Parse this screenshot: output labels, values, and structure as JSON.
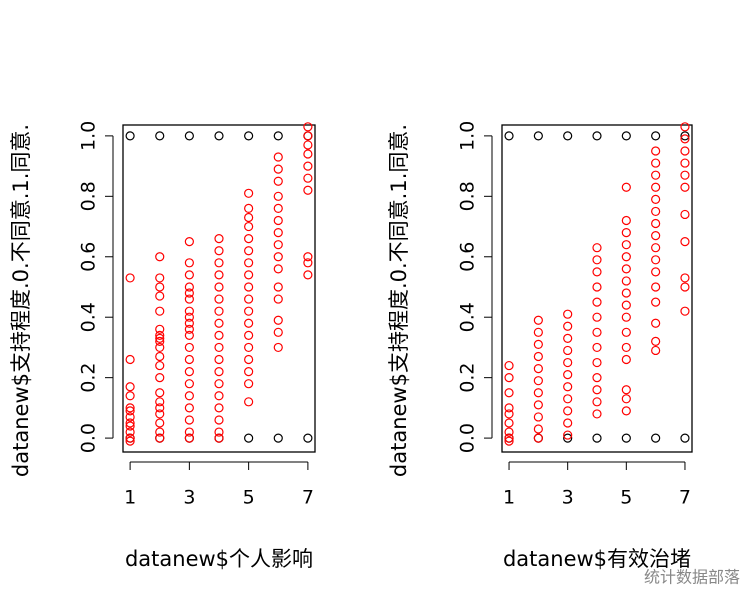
{
  "chart_data": [
    {
      "type": "scatter",
      "xlabel": "datanew$个人影响",
      "ylabel": "datanew$支持程度.0.不同意.1.同意.",
      "xlim": [
        0.76,
        7.24
      ],
      "ylim": [
        -0.046,
        1.036
      ],
      "xticks": [
        1,
        3,
        5,
        7
      ],
      "yticks": [
        {
          "value": 0,
          "label": "0.0"
        },
        0.2,
        0.4,
        0.6,
        0.8,
        {
          "value": 1,
          "label": "1.0"
        }
      ],
      "series": [
        {
          "color": "#000000",
          "x": [
            1,
            2,
            3,
            4,
            5,
            6,
            7,
            1,
            2,
            3,
            4,
            5,
            6,
            7
          ],
          "values": [
            1,
            1,
            1,
            1,
            1,
            1,
            1,
            0,
            0,
            0,
            0,
            0,
            0,
            0
          ]
        },
        {
          "color": "#ff0000",
          "x": [
            1,
            1,
            1,
            1,
            1,
            1,
            1,
            1,
            1,
            1,
            1,
            1,
            2,
            2,
            2,
            2,
            2,
            2,
            2,
            2,
            2,
            2,
            2,
            2,
            2,
            2,
            2,
            2,
            2,
            2,
            2,
            2,
            3,
            3,
            3,
            3,
            3,
            3,
            3,
            3,
            3,
            3,
            3,
            3,
            3,
            3,
            3,
            3,
            3,
            3,
            3,
            3,
            4,
            4,
            4,
            4,
            4,
            4,
            4,
            4,
            4,
            4,
            4,
            4,
            4,
            4,
            4,
            4,
            4,
            4,
            5,
            5,
            5,
            5,
            5,
            5,
            5,
            5,
            5,
            5,
            5,
            5,
            5,
            5,
            5,
            5,
            5,
            5,
            6,
            6,
            6,
            6,
            6,
            6,
            6,
            6,
            6,
            6,
            6,
            6,
            6,
            6,
            6,
            7,
            7,
            7,
            7,
            7,
            7,
            7,
            7,
            7,
            7
          ],
          "values": [
            0.53,
            0.26,
            0.17,
            0.14,
            0.09,
            0.07,
            0.04,
            0.02,
            0.0,
            -0.01,
            0.1,
            0.05,
            0.6,
            0.53,
            0.5,
            0.47,
            0.42,
            0.36,
            0.33,
            0.3,
            0.27,
            0.24,
            0.2,
            0.15,
            0.12,
            0.08,
            0.05,
            0.02,
            0.0,
            0.32,
            0.34,
            0.1,
            0.65,
            0.58,
            0.54,
            0.5,
            0.46,
            0.42,
            0.38,
            0.34,
            0.3,
            0.26,
            0.22,
            0.18,
            0.14,
            0.1,
            0.06,
            0.02,
            0.0,
            0.48,
            0.4,
            0.36,
            0.66,
            0.62,
            0.58,
            0.54,
            0.5,
            0.46,
            0.42,
            0.38,
            0.34,
            0.3,
            0.26,
            0.22,
            0.18,
            0.14,
            0.1,
            0.06,
            0.02,
            0.0,
            0.81,
            0.76,
            0.73,
            0.7,
            0.66,
            0.62,
            0.58,
            0.54,
            0.5,
            0.46,
            0.42,
            0.38,
            0.34,
            0.3,
            0.26,
            0.22,
            0.18,
            0.12,
            0.93,
            0.89,
            0.85,
            0.8,
            0.76,
            0.72,
            0.68,
            0.64,
            0.6,
            0.56,
            0.5,
            0.46,
            0.39,
            0.35,
            0.3,
            1.03,
            1.0,
            0.97,
            0.94,
            0.9,
            0.86,
            0.82,
            0.6,
            0.58,
            0.54
          ]
        }
      ]
    },
    {
      "type": "scatter",
      "xlabel": "datanew$有效治堵",
      "ylabel": "datanew$支持程度.0.不同意.1.同意.",
      "xlim": [
        0.76,
        7.24
      ],
      "ylim": [
        -0.046,
        1.036
      ],
      "xticks": [
        1,
        3,
        5,
        7
      ],
      "yticks": [
        {
          "value": 0,
          "label": "0.0"
        },
        0.2,
        0.4,
        0.6,
        0.8,
        {
          "value": 1,
          "label": "1.0"
        }
      ],
      "series": [
        {
          "color": "#000000",
          "x": [
            1,
            2,
            3,
            4,
            5,
            6,
            7,
            1,
            2,
            3,
            4,
            5,
            6,
            7
          ],
          "values": [
            1,
            1,
            1,
            1,
            1,
            1,
            1,
            0,
            0,
            0,
            0,
            0,
            0,
            0
          ]
        },
        {
          "color": "#ff0000",
          "x": [
            1,
            1,
            1,
            1,
            1,
            1,
            1,
            1,
            1,
            2,
            2,
            2,
            2,
            2,
            2,
            2,
            2,
            2,
            2,
            2,
            3,
            3,
            3,
            3,
            3,
            3,
            3,
            3,
            3,
            3,
            3,
            4,
            4,
            4,
            4,
            4,
            4,
            4,
            4,
            4,
            4,
            4,
            4,
            4,
            5,
            5,
            5,
            5,
            5,
            5,
            5,
            5,
            5,
            5,
            5,
            5,
            5,
            5,
            5,
            5,
            6,
            6,
            6,
            6,
            6,
            6,
            6,
            6,
            6,
            6,
            6,
            6,
            6,
            6,
            6,
            6,
            7,
            7,
            7,
            7,
            7,
            7,
            7,
            7,
            7,
            7,
            7
          ],
          "values": [
            0.24,
            0.2,
            0.15,
            0.1,
            0.08,
            0.05,
            0.02,
            0.0,
            -0.01,
            0.39,
            0.35,
            0.31,
            0.27,
            0.23,
            0.19,
            0.15,
            0.11,
            0.07,
            0.03,
            0.0,
            0.41,
            0.37,
            0.33,
            0.29,
            0.25,
            0.21,
            0.17,
            0.13,
            0.09,
            0.05,
            0.01,
            0.63,
            0.59,
            0.55,
            0.5,
            0.45,
            0.4,
            0.35,
            0.3,
            0.25,
            0.2,
            0.16,
            0.12,
            0.08,
            0.83,
            0.72,
            0.68,
            0.64,
            0.6,
            0.56,
            0.52,
            0.48,
            0.44,
            0.4,
            0.35,
            0.3,
            0.26,
            0.16,
            0.13,
            0.09,
            0.95,
            0.91,
            0.87,
            0.83,
            0.79,
            0.75,
            0.71,
            0.67,
            0.63,
            0.59,
            0.55,
            0.5,
            0.45,
            0.38,
            0.32,
            0.29,
            1.03,
            0.99,
            0.95,
            0.91,
            0.87,
            0.83,
            0.74,
            0.65,
            0.53,
            0.5,
            0.42
          ]
        }
      ]
    }
  ],
  "watermark": "统计数据部落"
}
